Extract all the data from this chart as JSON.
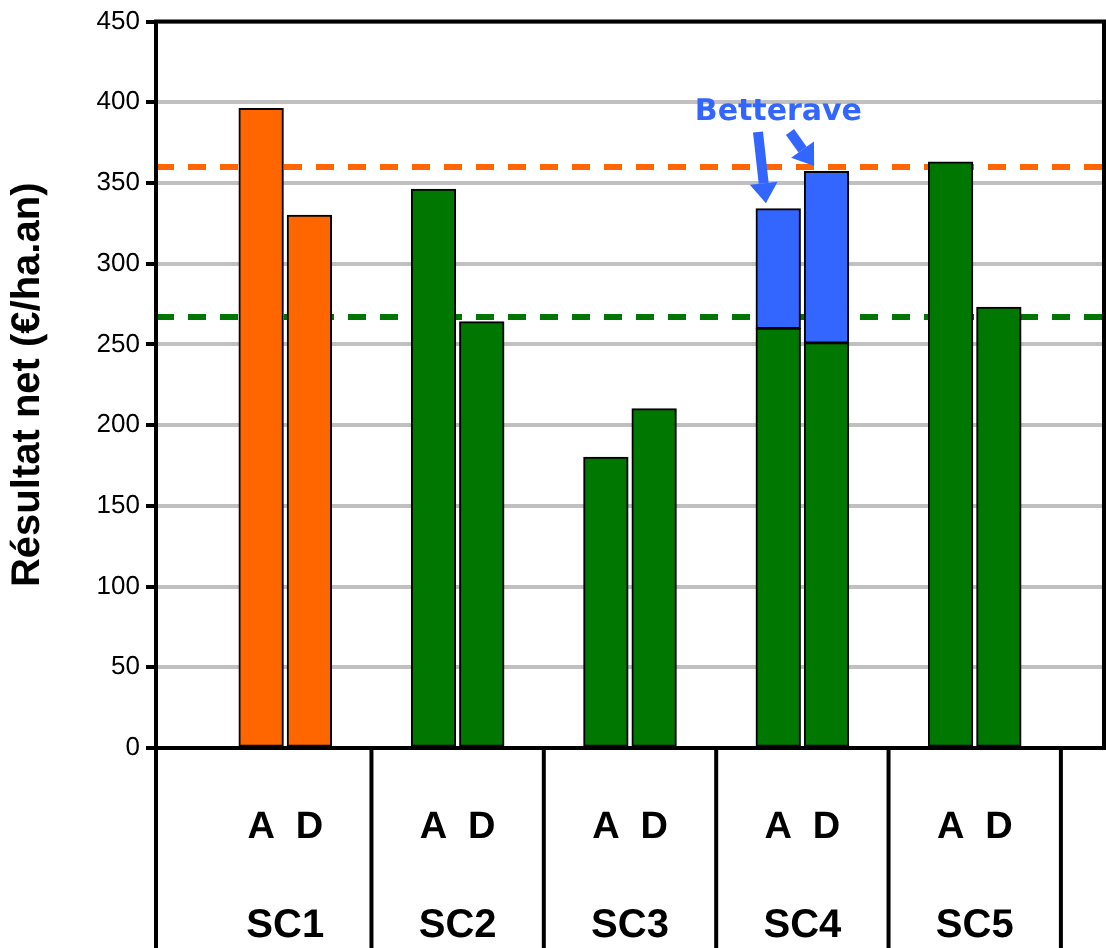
{
  "chart_data": {
    "type": "bar",
    "ylabel": "Résultat net (€/ha.an)",
    "categories": [
      "A",
      "D",
      "A",
      "D",
      "A",
      "D",
      "A",
      "D",
      "A",
      "D"
    ],
    "stacked": true,
    "series": [
      {
        "colors": [
          "#ff6600",
          "#ff6600",
          "#007700",
          "#007700",
          "#007700",
          "#007700",
          "#007700",
          "#007700",
          "#007700",
          "#007700"
        ],
        "values": [
          396,
          330,
          346,
          264,
          180,
          210,
          260,
          251,
          363,
          273
        ]
      },
      {
        "name": "Betterave",
        "color": "#3366ff",
        "values": [
          null,
          null,
          null,
          null,
          null,
          null,
          74,
          106,
          null,
          null
        ]
      }
    ],
    "annotations": [
      "SC1",
      "SC2",
      "SC3",
      "SC4",
      "SC5"
    ],
    "ylim": [
      0,
      450
    ],
    "yticks": [
      0,
      50,
      100,
      150,
      200,
      250,
      300,
      350,
      400,
      450
    ],
    "grid": "y",
    "legend": false,
    "ref_lines": [
      {
        "axis": "y",
        "value": 360,
        "color": "#ff6600",
        "line_style": "dashed"
      },
      {
        "axis": "y",
        "value": 267,
        "color": "#007700",
        "line_style": "dashed"
      }
    ]
  }
}
